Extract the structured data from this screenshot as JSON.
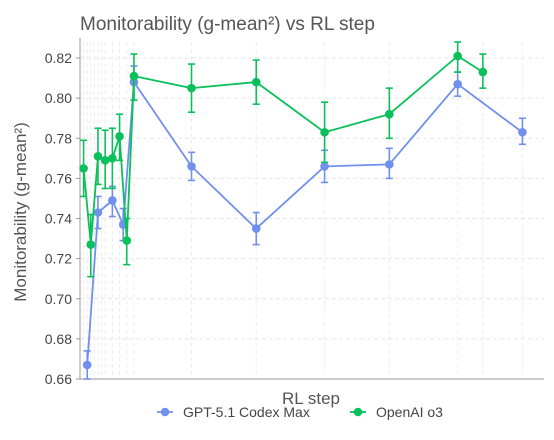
{
  "chart_data": {
    "type": "line",
    "title": "Monitorability (g-mean²) vs RL step",
    "xlabel": "RL step",
    "ylabel": "Monitorability (g-mean²)",
    "ylim": [
      0.66,
      0.828
    ],
    "yticks": [
      "0.66",
      "0.68",
      "0.70",
      "0.72",
      "0.74",
      "0.76",
      "0.78",
      "0.80",
      "0.82"
    ],
    "xticks_visible": false,
    "grid": true,
    "legend_position": "bottom-center",
    "series": [
      {
        "name": "GPT-5.1 Codex Max",
        "color": "#7190ee",
        "points": [
          {
            "x": 5,
            "y": 0.667,
            "lo": 0.66,
            "hi": 0.674
          },
          {
            "x": 20,
            "y": 0.743,
            "lo": 0.735,
            "hi": 0.751
          },
          {
            "x": 40,
            "y": 0.749,
            "lo": 0.741,
            "hi": 0.756
          },
          {
            "x": 55,
            "y": 0.737,
            "lo": 0.729,
            "hi": 0.745
          },
          {
            "x": 70,
            "y": 0.808,
            "lo": 0.799,
            "hi": 0.816
          },
          {
            "x": 150,
            "y": 0.766,
            "lo": 0.759,
            "hi": 0.773
          },
          {
            "x": 240,
            "y": 0.735,
            "lo": 0.727,
            "hi": 0.743
          },
          {
            "x": 335,
            "y": 0.766,
            "lo": 0.758,
            "hi": 0.774
          },
          {
            "x": 425,
            "y": 0.767,
            "lo": 0.76,
            "hi": 0.775
          },
          {
            "x": 520,
            "y": 0.807,
            "lo": 0.801,
            "hi": 0.813
          },
          {
            "x": 610,
            "y": 0.783,
            "lo": 0.777,
            "hi": 0.79
          }
        ]
      },
      {
        "name": "OpenAI o3",
        "color": "#0ac05a",
        "points": [
          {
            "x": 0,
            "y": 0.765,
            "lo": 0.751,
            "hi": 0.779
          },
          {
            "x": 10,
            "y": 0.727,
            "lo": 0.711,
            "hi": 0.742
          },
          {
            "x": 20,
            "y": 0.771,
            "lo": 0.757,
            "hi": 0.785
          },
          {
            "x": 30,
            "y": 0.769,
            "lo": 0.755,
            "hi": 0.784
          },
          {
            "x": 40,
            "y": 0.77,
            "lo": 0.755,
            "hi": 0.785
          },
          {
            "x": 50,
            "y": 0.781,
            "lo": 0.769,
            "hi": 0.792
          },
          {
            "x": 60,
            "y": 0.729,
            "lo": 0.717,
            "hi": 0.74
          },
          {
            "x": 70,
            "y": 0.811,
            "lo": 0.799,
            "hi": 0.822
          },
          {
            "x": 150,
            "y": 0.805,
            "lo": 0.793,
            "hi": 0.817
          },
          {
            "x": 240,
            "y": 0.808,
            "lo": 0.797,
            "hi": 0.819
          },
          {
            "x": 335,
            "y": 0.783,
            "lo": 0.768,
            "hi": 0.798
          },
          {
            "x": 425,
            "y": 0.792,
            "lo": 0.78,
            "hi": 0.805
          },
          {
            "x": 520,
            "y": 0.821,
            "lo": 0.813,
            "hi": 0.828
          },
          {
            "x": 555,
            "y": 0.813,
            "lo": 0.805,
            "hi": 0.822
          }
        ]
      }
    ]
  }
}
